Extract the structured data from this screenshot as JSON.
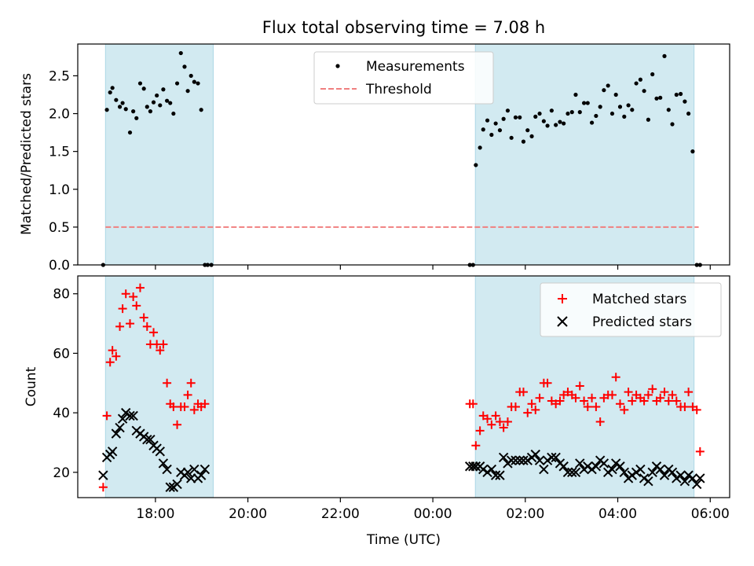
{
  "figure_title": "Flux total observing time = 7.08 h",
  "xlabel": "Time (UTC)",
  "colors": {
    "observing_band": "#add8e6",
    "threshold": "#f08080",
    "matched": "#ff0000",
    "predicted": "#000000",
    "measurement": "#000000"
  },
  "chart_data": [
    {
      "type": "scatter",
      "title": "Flux total observing time = 7.08 h",
      "xlabel": "",
      "ylabel": "Matched/Predicted stars",
      "xlim_hours": [
        16.32,
        30.42
      ],
      "ylim": [
        0,
        2.92
      ],
      "yticks": [
        0.0,
        0.5,
        1.0,
        1.5,
        2.0,
        2.5
      ],
      "ytick_labels": [
        "0.0",
        "0.5",
        "1.0",
        "1.5",
        "2.0",
        "2.5"
      ],
      "xticks_hours": [
        18,
        20,
        22,
        24,
        26,
        28,
        30
      ],
      "xtick_labels": [
        "",
        "",
        "",
        "",
        "",
        "",
        ""
      ],
      "observing_windows_hours": [
        [
          16.92,
          19.25
        ],
        [
          24.92,
          29.65
        ]
      ],
      "threshold": {
        "label": "Threshold",
        "value": 0.5,
        "x_range": [
          16.92,
          29.75
        ]
      },
      "legend": {
        "location": "upper center",
        "entries": [
          "Measurements",
          "Threshold"
        ]
      },
      "series": [
        {
          "name": "Measurements",
          "x": [
            16.87,
            16.95,
            17.02,
            17.07,
            17.15,
            17.23,
            17.29,
            17.36,
            17.45,
            17.52,
            17.59,
            17.67,
            17.75,
            17.82,
            17.89,
            17.96,
            18.03,
            18.1,
            18.17,
            18.25,
            18.32,
            18.39,
            18.47,
            18.55,
            18.63,
            18.7,
            18.77,
            18.84,
            18.92,
            18.99,
            19.07,
            19.13,
            19.21,
            24.8,
            24.87,
            24.93,
            25.02,
            25.09,
            25.18,
            25.27,
            25.36,
            25.45,
            25.53,
            25.62,
            25.7,
            25.79,
            25.88,
            25.96,
            26.05,
            26.14,
            26.22,
            26.31,
            26.4,
            26.48,
            26.57,
            26.66,
            26.75,
            26.83,
            26.92,
            27.01,
            27.09,
            27.18,
            27.27,
            27.35,
            27.44,
            27.53,
            27.62,
            27.7,
            27.79,
            27.88,
            27.96,
            28.05,
            28.14,
            28.23,
            28.31,
            28.4,
            28.49,
            28.57,
            28.66,
            28.75,
            28.84,
            28.92,
            29.01,
            29.1,
            29.18,
            29.27,
            29.36,
            29.45,
            29.53,
            29.62,
            29.71,
            29.78
          ],
          "y": [
            0.0,
            2.05,
            2.28,
            2.34,
            2.18,
            2.09,
            2.14,
            2.06,
            1.75,
            2.03,
            1.94,
            2.4,
            2.33,
            2.09,
            2.03,
            2.15,
            2.24,
            2.11,
            2.32,
            2.17,
            2.14,
            2.0,
            2.4,
            2.8,
            2.62,
            2.3,
            2.5,
            2.42,
            2.4,
            2.05,
            0.0,
            0.0,
            0.0,
            0.0,
            0.0,
            1.32,
            1.55,
            1.79,
            1.91,
            1.72,
            1.87,
            1.78,
            1.93,
            2.04,
            1.68,
            1.95,
            1.95,
            1.63,
            1.78,
            1.7,
            1.96,
            2.0,
            1.9,
            1.84,
            2.04,
            1.85,
            1.89,
            1.87,
            2.0,
            2.02,
            2.25,
            2.02,
            2.14,
            2.14,
            1.88,
            1.97,
            2.09,
            2.31,
            2.37,
            2.0,
            2.25,
            2.09,
            1.96,
            2.11,
            2.05,
            2.4,
            2.45,
            2.3,
            1.92,
            2.52,
            2.2,
            2.21,
            2.76,
            2.05,
            1.86,
            2.25,
            2.26,
            2.16,
            2.0,
            1.5,
            0.0,
            0.0
          ]
        }
      ]
    },
    {
      "type": "scatter",
      "title": "",
      "xlabel": "Time (UTC)",
      "ylabel": "Count",
      "xlim_hours": [
        16.32,
        30.42
      ],
      "ylim": [
        11.5,
        86.0
      ],
      "yticks": [
        20,
        40,
        60,
        80
      ],
      "ytick_labels": [
        "20",
        "40",
        "60",
        "80"
      ],
      "xticks_hours": [
        18,
        20,
        22,
        24,
        26,
        28,
        30
      ],
      "xtick_labels": [
        "18:00",
        "20:00",
        "22:00",
        "00:00",
        "02:00",
        "04:00",
        "06:00"
      ],
      "observing_windows_hours": [
        [
          16.92,
          19.25
        ],
        [
          24.92,
          29.65
        ]
      ],
      "legend": {
        "location": "upper right",
        "entries": [
          "Matched stars",
          "Predicted stars"
        ]
      },
      "series": [
        {
          "name": "Matched stars",
          "marker": "plus",
          "x": [
            16.87,
            16.95,
            17.02,
            17.07,
            17.15,
            17.23,
            17.29,
            17.36,
            17.45,
            17.52,
            17.59,
            17.67,
            17.75,
            17.82,
            17.89,
            17.96,
            18.03,
            18.1,
            18.17,
            18.25,
            18.32,
            18.39,
            18.47,
            18.55,
            18.63,
            18.7,
            18.77,
            18.84,
            18.92,
            18.99,
            19.07,
            24.8,
            24.87,
            24.93,
            25.02,
            25.09,
            25.18,
            25.27,
            25.36,
            25.45,
            25.53,
            25.62,
            25.7,
            25.79,
            25.88,
            25.96,
            26.05,
            26.14,
            26.22,
            26.31,
            26.4,
            26.48,
            26.57,
            26.66,
            26.75,
            26.83,
            26.92,
            27.01,
            27.09,
            27.18,
            27.27,
            27.35,
            27.44,
            27.53,
            27.62,
            27.7,
            27.79,
            27.88,
            27.96,
            28.05,
            28.14,
            28.23,
            28.31,
            28.4,
            28.49,
            28.57,
            28.66,
            28.75,
            28.84,
            28.92,
            29.01,
            29.1,
            29.18,
            29.27,
            29.36,
            29.45,
            29.53,
            29.62,
            29.71,
            29.78
          ],
          "y": [
            15,
            39,
            57,
            61,
            59,
            69,
            75,
            80,
            70,
            79,
            76,
            82,
            72,
            69,
            63,
            67,
            63,
            61,
            63,
            50,
            43,
            42,
            36,
            42,
            42,
            46,
            50,
            41,
            43,
            42,
            43,
            43,
            43,
            29,
            34,
            39,
            38,
            36,
            39,
            37,
            35,
            37,
            42,
            42,
            47,
            47,
            40,
            43,
            41,
            45,
            50,
            50,
            44,
            43,
            44,
            46,
            47,
            46,
            45,
            49,
            44,
            42,
            45,
            42,
            37,
            45,
            46,
            46,
            52,
            43,
            41,
            47,
            44,
            46,
            45,
            44,
            46,
            48,
            44,
            45,
            47,
            44,
            46,
            44,
            42,
            42,
            47,
            42,
            41,
            27
          ]
        },
        {
          "name": "Predicted stars",
          "marker": "x",
          "x": [
            16.87,
            16.95,
            17.02,
            17.07,
            17.15,
            17.23,
            17.29,
            17.36,
            17.45,
            17.52,
            17.59,
            17.67,
            17.75,
            17.82,
            17.89,
            17.96,
            18.03,
            18.1,
            18.17,
            18.25,
            18.32,
            18.39,
            18.47,
            18.55,
            18.63,
            18.7,
            18.77,
            18.84,
            18.92,
            18.99,
            19.07,
            24.8,
            24.87,
            24.93,
            25.02,
            25.09,
            25.18,
            25.27,
            25.36,
            25.45,
            25.53,
            25.62,
            25.7,
            25.79,
            25.88,
            25.96,
            26.05,
            26.14,
            26.22,
            26.31,
            26.4,
            26.48,
            26.57,
            26.66,
            26.75,
            26.83,
            26.92,
            27.01,
            27.09,
            27.18,
            27.27,
            27.35,
            27.44,
            27.53,
            27.62,
            27.7,
            27.79,
            27.88,
            27.96,
            28.05,
            28.14,
            28.23,
            28.31,
            28.4,
            28.49,
            28.57,
            28.66,
            28.75,
            28.84,
            28.92,
            29.01,
            29.1,
            29.18,
            29.27,
            29.36,
            29.45,
            29.53,
            29.62,
            29.71,
            29.78
          ],
          "y": [
            19,
            25,
            26,
            27,
            33,
            35,
            38,
            40,
            39,
            39,
            34,
            33,
            32,
            31,
            31,
            29,
            28,
            27,
            23,
            21,
            15,
            15,
            16,
            20,
            19,
            20,
            18,
            21,
            18,
            19,
            21,
            22,
            22,
            22,
            22,
            21,
            20,
            21,
            19,
            19,
            25,
            23,
            24,
            24,
            24,
            24,
            24,
            25,
            26,
            24,
            21,
            24,
            25,
            25,
            23,
            22,
            20,
            20,
            20,
            23,
            21,
            22,
            21,
            22,
            24,
            23,
            20,
            21,
            23,
            22,
            20,
            18,
            19,
            20,
            21,
            18,
            17,
            20,
            22,
            21,
            19,
            21,
            20,
            18,
            19,
            17,
            19,
            18,
            16,
            18
          ]
        }
      ]
    }
  ]
}
